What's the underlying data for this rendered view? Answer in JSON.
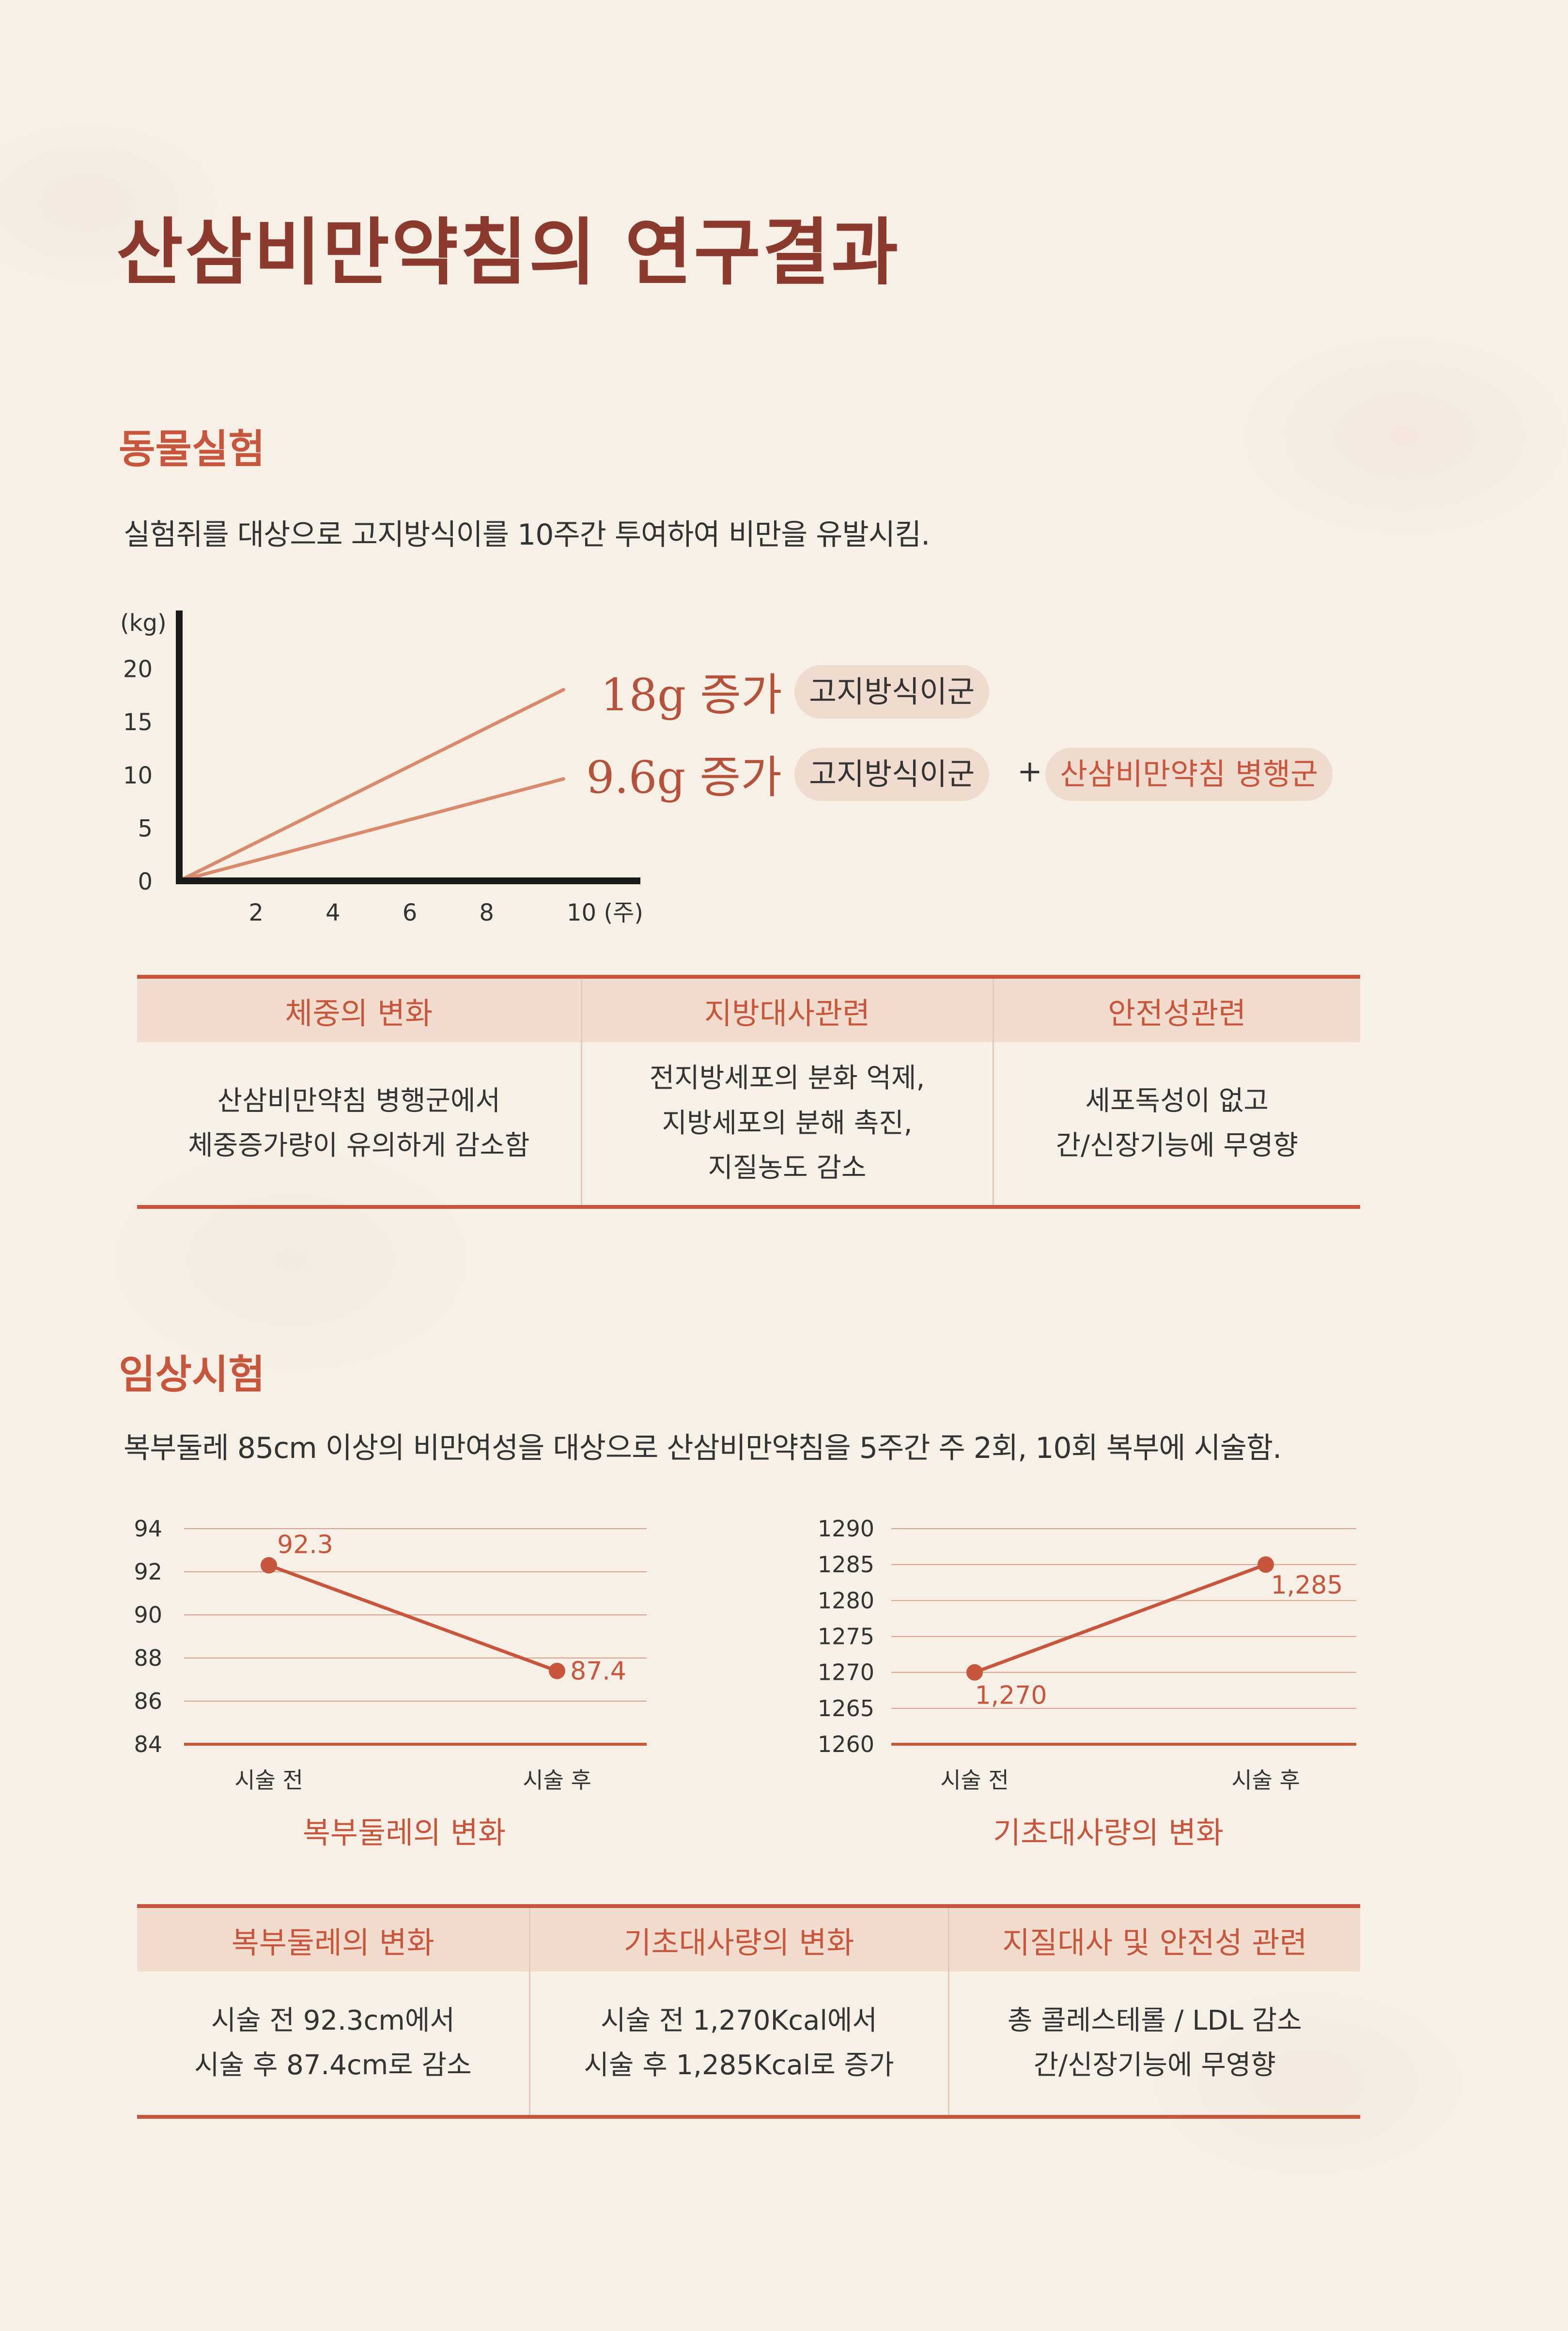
{
  "title": "산삼비만약침의 연구결과",
  "animal": {
    "heading": "동물실험",
    "description": "실험쥐를 대상으로 고지방식이를 10주간 투여하여 비만을 유발시킴.",
    "chart_data": {
      "type": "line",
      "ylabel": "(kg)",
      "xlabel": "10 (주)",
      "y_ticks": [
        "20",
        "15",
        "10",
        "5",
        "0"
      ],
      "x_ticks": [
        "2",
        "4",
        "6",
        "8"
      ],
      "ylim": [
        0,
        25
      ],
      "xlim": [
        0,
        12
      ],
      "series": [
        {
          "x": [
            0,
            10
          ],
          "y": [
            0,
            18
          ]
        },
        {
          "x": [
            0,
            10
          ],
          "y": [
            0,
            9.6
          ]
        }
      ],
      "annotations": [
        {
          "gain": "18g 증가",
          "group": "고지방식이군"
        },
        {
          "gain": "9.6g 증가",
          "group": "고지방식이군",
          "plus": "+",
          "group2": "산삼비만약침 병행군"
        }
      ],
      "line_color": "#d9896c"
    },
    "table": {
      "headers": [
        "체중의 변화",
        "지방대사관련",
        "안전성관련"
      ],
      "cells": [
        [
          "산삼비만약침 병행군에서",
          "체중증가량이 유의하게 감소함"
        ],
        [
          "전지방세포의 분화 억제,",
          "지방세포의 분해 촉진,",
          "지질농도 감소"
        ],
        [
          "세포독성이 없고",
          "간/신장기능에 무영향"
        ]
      ]
    }
  },
  "clinical": {
    "heading": "임상시험",
    "description": "복부둘레 85cm 이상의 비만여성을 대상으로 산삼비만약침을 5주간 주 2회, 10회 복부에 시술함.",
    "chart_data": [
      {
        "type": "line",
        "title": "복부둘레의 변화",
        "categories": [
          "시술 전",
          "시술 후"
        ],
        "values": [
          92.3,
          87.4
        ],
        "labels": [
          "92.3",
          "87.4"
        ],
        "y_ticks": [
          "94",
          "92",
          "90",
          "88",
          "86",
          "84"
        ],
        "ylim": [
          84,
          94
        ],
        "color": "#c8563c"
      },
      {
        "type": "line",
        "title": "기초대사량의 변화",
        "categories": [
          "시술 전",
          "시술 후"
        ],
        "values": [
          1270,
          1285
        ],
        "labels": [
          "1,270",
          "1,285"
        ],
        "y_ticks": [
          "1290",
          "1285",
          "1280",
          "1275",
          "1270",
          "1265",
          "1260"
        ],
        "ylim": [
          1260,
          1290
        ],
        "color": "#c8563c"
      }
    ],
    "table": {
      "headers": [
        "복부둘레의 변화",
        "기초대사량의 변화",
        "지질대사 및 안전성 관련"
      ],
      "cells": [
        [
          "시술 전 92.3cm에서",
          "시술 후 87.4cm로 감소"
        ],
        [
          "시술 전 1,270Kcal에서",
          "시술 후 1,285Kcal로 증가"
        ],
        [
          "총 콜레스테롤 / LDL 감소",
          "간/신장기능에 무영향"
        ]
      ]
    }
  }
}
